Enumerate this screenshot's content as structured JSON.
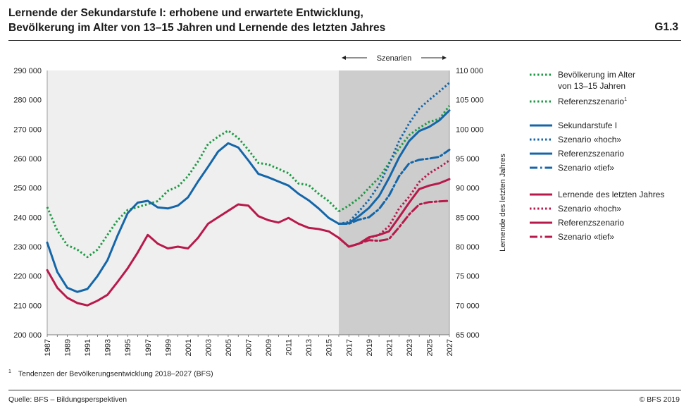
{
  "title": {
    "line1": "Lernende der Sekundarstufe I: erhobene und erwartete Entwicklung,",
    "line2": "Bevölkerung im Alter von 13–15 Jahren und Lernende des letzten Jahres"
  },
  "figure_code": "G1.3",
  "footnote": {
    "mark": "1",
    "text": "Tendenzen der Bevölkerungsentwicklung 2018–2027 (BFS)"
  },
  "source": "Quelle: BFS – Bildungsperspektiven",
  "copyright": "© BFS 2019",
  "colors": {
    "green": "#1e9a45",
    "blue": "#1466a8",
    "red": "#b8194b",
    "plot_bg": "#efefef",
    "scenario_bg": "#cdcdcd"
  },
  "chart_data": {
    "type": "line",
    "scenario_label": "Szenarien",
    "scenario_start": 2016,
    "xlim": [
      1987,
      2027
    ],
    "x_ticks": [
      "1987",
      "1989",
      "1991",
      "1993",
      "1995",
      "1997",
      "1999",
      "2001",
      "2003",
      "2005",
      "2007",
      "2009",
      "2011",
      "2013",
      "2015",
      "2017",
      "2019",
      "2021",
      "2023",
      "2025",
      "2027"
    ],
    "ylim_left": [
      200000,
      290000
    ],
    "y_left_ticks": [
      "200 000",
      "210 000",
      "220 000",
      "230 000",
      "240 000",
      "250 000",
      "260 000",
      "270 000",
      "280 000",
      "290 000"
    ],
    "ylim_right": [
      65000,
      110000
    ],
    "y_right_ticks": [
      "65 000",
      "70 000",
      "75 000",
      "80 000",
      "85 000",
      "90 000",
      "95 000",
      "100 000",
      "105 000",
      "110 000"
    ],
    "ylabel_right": "Lernende des letzten Jahres",
    "series": [
      {
        "name": "Bevölkerung im Alter von 13–15 Jahren",
        "axis": "left",
        "color": "green",
        "style": "dotted",
        "group": "pop",
        "x": [
          1987,
          1988,
          1989,
          1990,
          1991,
          1992,
          1993,
          1994,
          1995,
          1996,
          1997,
          1998,
          1999,
          2000,
          2001,
          2002,
          2003,
          2004,
          2005,
          2006,
          2007,
          2008,
          2009,
          2010,
          2011,
          2012,
          2013,
          2014,
          2015,
          2016
        ],
        "values": [
          243500,
          235500,
          230500,
          229000,
          226500,
          229000,
          234000,
          239000,
          242500,
          243500,
          244500,
          245500,
          249000,
          250500,
          254000,
          259000,
          265000,
          267500,
          269500,
          267000,
          263000,
          258500,
          258000,
          256500,
          255000,
          251500,
          251000,
          248000,
          245500,
          242000
        ]
      },
      {
        "name": "Referenzszenario",
        "legend_sup": "1",
        "axis": "left",
        "color": "green",
        "style": "dotted",
        "group": "pop",
        "x": [
          2016,
          2017,
          2018,
          2019,
          2020,
          2021,
          2022,
          2023,
          2024,
          2025,
          2026,
          2027
        ],
        "values": [
          242000,
          244000,
          246500,
          250000,
          253500,
          258500,
          263500,
          268000,
          270500,
          272500,
          273500,
          278000
        ]
      },
      {
        "name": "Sekundarstufe I",
        "axis": "right",
        "color": "blue",
        "style": "solid",
        "group": "sek",
        "x": [
          1987,
          1988,
          1989,
          1990,
          1991,
          1992,
          1993,
          1994,
          1995,
          1996,
          1997,
          1998,
          1999,
          2000,
          2001,
          2002,
          2003,
          2004,
          2005,
          2006,
          2007,
          2008,
          2009,
          2010,
          2011,
          2012,
          2013,
          2014,
          2015,
          2016
        ],
        "values": [
          80700,
          75700,
          73000,
          72300,
          72800,
          75000,
          77700,
          81900,
          85700,
          87500,
          87800,
          86700,
          86500,
          87000,
          88400,
          91100,
          93600,
          96200,
          97600,
          96900,
          94700,
          92400,
          91800,
          91100,
          90400,
          89000,
          87900,
          86500,
          84900,
          83900
        ]
      },
      {
        "name": "Szenario «hoch»",
        "axis": "right",
        "color": "blue",
        "style": "dotted",
        "group": "sek",
        "x": [
          2016,
          2017,
          2018,
          2019,
          2020,
          2021,
          2022,
          2023,
          2024,
          2025,
          2026,
          2027
        ],
        "values": [
          83900,
          84200,
          86000,
          88000,
          90500,
          94000,
          98000,
          101000,
          103500,
          105000,
          106400,
          107900
        ]
      },
      {
        "name": "Referenzszenario",
        "axis": "right",
        "color": "blue",
        "style": "solid",
        "group": "sek",
        "x": [
          2016,
          2017,
          2018,
          2019,
          2020,
          2021,
          2022,
          2023,
          2024,
          2025,
          2026,
          2027
        ],
        "values": [
          83900,
          84000,
          85200,
          86600,
          88600,
          91700,
          95200,
          98000,
          99700,
          100400,
          101500,
          103200
        ]
      },
      {
        "name": "Szenario «tief»",
        "axis": "right",
        "color": "blue",
        "style": "dashdot",
        "group": "sek",
        "x": [
          2016,
          2017,
          2018,
          2019,
          2020,
          2021,
          2022,
          2023,
          2024,
          2025,
          2026,
          2027
        ],
        "values": [
          83900,
          83900,
          84600,
          85000,
          86400,
          88700,
          92000,
          94200,
          94800,
          95000,
          95300,
          96500
        ]
      },
      {
        "name": "Lernende des letzten Jahres",
        "axis": "right",
        "color": "red",
        "style": "solid",
        "group": "lle",
        "x": [
          1987,
          1988,
          1989,
          1990,
          1991,
          1992,
          1993,
          1994,
          1995,
          1996,
          1997,
          1998,
          1999,
          2000,
          2001,
          2002,
          2003,
          2004,
          2005,
          2006,
          2007,
          2008,
          2009,
          2010,
          2011,
          2012,
          2013,
          2014,
          2015,
          2016
        ],
        "values": [
          76000,
          73000,
          71300,
          70400,
          70000,
          70800,
          71800,
          74000,
          76300,
          79000,
          82000,
          80500,
          79700,
          80000,
          79700,
          81500,
          83900,
          85000,
          86100,
          87200,
          87000,
          85200,
          84500,
          84100,
          84900,
          83900,
          83200,
          83000,
          82600,
          81500
        ]
      },
      {
        "name": "Szenario «hoch»",
        "axis": "right",
        "color": "red",
        "style": "dotted",
        "group": "lle",
        "x": [
          2016,
          2017,
          2018,
          2019,
          2020,
          2021,
          2022,
          2023,
          2024,
          2025,
          2026,
          2027
        ],
        "values": [
          81500,
          80000,
          80500,
          81500,
          82000,
          83500,
          86500,
          88500,
          91000,
          92500,
          93500,
          94700
        ]
      },
      {
        "name": "Referenzszenario",
        "axis": "right",
        "color": "red",
        "style": "solid",
        "group": "lle",
        "x": [
          2016,
          2017,
          2018,
          2019,
          2020,
          2021,
          2022,
          2023,
          2024,
          2025,
          2026,
          2027
        ],
        "values": [
          81500,
          80000,
          80500,
          81600,
          82000,
          82600,
          85000,
          87500,
          89800,
          90400,
          90800,
          91500
        ]
      },
      {
        "name": "Szenario «tief»",
        "axis": "right",
        "color": "red",
        "style": "dashdot",
        "group": "lle",
        "x": [
          2016,
          2017,
          2018,
          2019,
          2020,
          2021,
          2022,
          2023,
          2024,
          2025,
          2026,
          2027
        ],
        "values": [
          81500,
          80000,
          80500,
          81100,
          81000,
          81300,
          83300,
          85500,
          87200,
          87600,
          87700,
          87800
        ]
      }
    ]
  }
}
